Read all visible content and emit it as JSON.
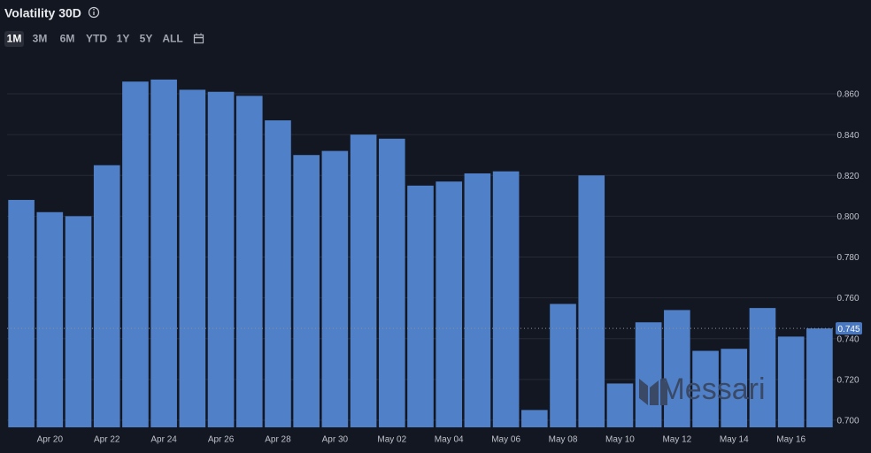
{
  "header": {
    "title": "Volatility 30D",
    "ranges": [
      "1M",
      "3M",
      "6M",
      "YTD",
      "1Y",
      "5Y",
      "ALL"
    ],
    "active_range": "1M"
  },
  "watermark": "Messari",
  "chart_data": {
    "type": "bar",
    "color": "#5080c8",
    "grid": true,
    "categories": [
      null,
      "Apr 20",
      null,
      "Apr 22",
      null,
      "Apr 24",
      null,
      "Apr 26",
      null,
      "Apr 28",
      null,
      "Apr 30",
      null,
      "May 02",
      null,
      "May 04",
      null,
      "May 06",
      null,
      "May 08",
      null,
      "May 10",
      null,
      "May 12",
      null,
      "May 14",
      null,
      "May 16",
      null
    ],
    "values": [
      0.808,
      0.802,
      0.8,
      0.825,
      0.866,
      0.867,
      0.862,
      0.861,
      0.859,
      0.847,
      0.83,
      0.832,
      0.84,
      0.838,
      0.815,
      0.817,
      0.821,
      0.822,
      0.705,
      0.757,
      0.82,
      0.718,
      0.748,
      0.754,
      0.734,
      0.735,
      0.755,
      0.741,
      0.745
    ],
    "ylim": [
      0.6965,
      0.8713
    ],
    "yticks": [
      {
        "value": 0.7,
        "label": "0.700"
      },
      {
        "value": 0.72,
        "label": "0.720"
      },
      {
        "value": 0.74,
        "label": "0.740"
      },
      {
        "value": 0.76,
        "label": "0.760"
      },
      {
        "value": 0.78,
        "label": "0.780"
      },
      {
        "value": 0.8,
        "label": "0.800"
      },
      {
        "value": 0.82,
        "label": "0.820"
      },
      {
        "value": 0.84,
        "label": "0.840"
      },
      {
        "value": 0.86,
        "label": "0.860"
      }
    ]
  }
}
